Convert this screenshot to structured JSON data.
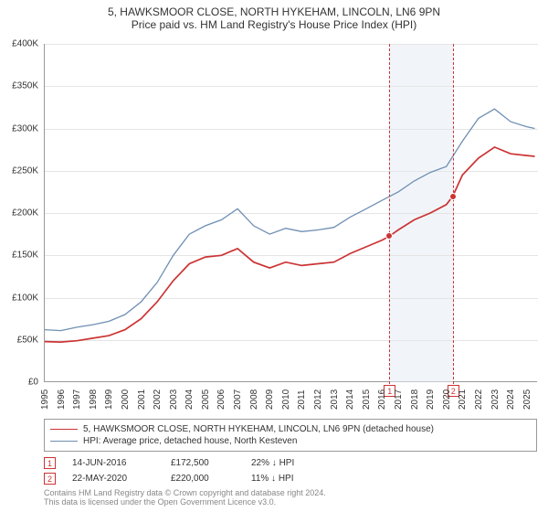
{
  "title": {
    "line1": "5, HAWKSMOOR CLOSE, NORTH HYKEHAM, LINCOLN, LN6 9PN",
    "line2": "Price paid vs. HM Land Registry's House Price Index (HPI)",
    "fontsize": 12,
    "color": "#333333"
  },
  "chart": {
    "type": "line",
    "background_color": "#ffffff",
    "grid_color": "#e5e5e5",
    "axis_color": "#999999",
    "ylim": [
      0,
      400000
    ],
    "ytick_step": 50000,
    "ytick_labels": [
      "£0",
      "£50K",
      "£100K",
      "£150K",
      "£200K",
      "£250K",
      "£300K",
      "£350K",
      "£400K"
    ],
    "ytick_fontsize": 10,
    "xlim": [
      1995,
      2025.7
    ],
    "xtick_years": [
      1995,
      1996,
      1997,
      1998,
      1999,
      2000,
      2001,
      2002,
      2003,
      2004,
      2005,
      2006,
      2007,
      2008,
      2009,
      2010,
      2011,
      2012,
      2013,
      2014,
      2015,
      2016,
      2017,
      2018,
      2019,
      2020,
      2021,
      2022,
      2023,
      2024,
      2025
    ],
    "xtick_fontsize": 10,
    "band": {
      "color": "#e6ecf5",
      "opacity": 0.55,
      "from_year": 2016.45,
      "to_year": 2020.4
    },
    "series": [
      {
        "name": "price_paid",
        "label": "5, HAWKSMOOR CLOSE, NORTH HYKEHAM, LINCOLN, LN6 9PN (detached house)",
        "color": "#cc3333",
        "line_width": 1.7,
        "data": [
          [
            1995,
            48000
          ],
          [
            1996,
            47500
          ],
          [
            1997,
            49000
          ],
          [
            1998,
            52000
          ],
          [
            1999,
            55000
          ],
          [
            2000,
            62000
          ],
          [
            2001,
            75000
          ],
          [
            2002,
            95000
          ],
          [
            2003,
            120000
          ],
          [
            2004,
            140000
          ],
          [
            2005,
            148000
          ],
          [
            2006,
            150000
          ],
          [
            2007,
            158000
          ],
          [
            2008,
            142000
          ],
          [
            2009,
            135000
          ],
          [
            2010,
            142000
          ],
          [
            2011,
            138000
          ],
          [
            2012,
            140000
          ],
          [
            2013,
            142000
          ],
          [
            2014,
            152000
          ],
          [
            2015,
            160000
          ],
          [
            2016,
            168000
          ],
          [
            2016.45,
            172500
          ],
          [
            2017,
            180000
          ],
          [
            2018,
            192000
          ],
          [
            2019,
            200000
          ],
          [
            2020,
            210000
          ],
          [
            2020.4,
            220000
          ],
          [
            2021,
            245000
          ],
          [
            2022,
            265000
          ],
          [
            2023,
            278000
          ],
          [
            2024,
            270000
          ],
          [
            2025,
            268000
          ],
          [
            2025.5,
            267000
          ]
        ]
      },
      {
        "name": "hpi",
        "label": "HPI: Average price, detached house, North Kesteven",
        "color": "#6f8fb3",
        "line_width": 1.3,
        "data": [
          [
            1995,
            62000
          ],
          [
            1996,
            61000
          ],
          [
            1997,
            65000
          ],
          [
            1998,
            68000
          ],
          [
            1999,
            72000
          ],
          [
            2000,
            80000
          ],
          [
            2001,
            95000
          ],
          [
            2002,
            118000
          ],
          [
            2003,
            150000
          ],
          [
            2004,
            175000
          ],
          [
            2005,
            185000
          ],
          [
            2006,
            192000
          ],
          [
            2007,
            205000
          ],
          [
            2008,
            185000
          ],
          [
            2009,
            175000
          ],
          [
            2010,
            182000
          ],
          [
            2011,
            178000
          ],
          [
            2012,
            180000
          ],
          [
            2013,
            183000
          ],
          [
            2014,
            195000
          ],
          [
            2015,
            205000
          ],
          [
            2016,
            215000
          ],
          [
            2017,
            225000
          ],
          [
            2018,
            238000
          ],
          [
            2019,
            248000
          ],
          [
            2020,
            255000
          ],
          [
            2021,
            285000
          ],
          [
            2022,
            312000
          ],
          [
            2023,
            323000
          ],
          [
            2024,
            308000
          ],
          [
            2025,
            302000
          ],
          [
            2025.5,
            300000
          ]
        ]
      }
    ],
    "markers": [
      {
        "id": "1",
        "year": 2016.45,
        "price": 172500,
        "dot_color": "#cc3333"
      },
      {
        "id": "2",
        "year": 2020.4,
        "price": 220000,
        "dot_color": "#cc3333"
      }
    ],
    "marker_style": {
      "line_color": "#cc3333",
      "box_border": "#cc3333",
      "box_bg": "#ffffff",
      "box_text_color": "#cc3333",
      "box_fontsize": 9,
      "dot_radius": 4
    }
  },
  "legend": {
    "border_color": "#999999",
    "fontsize": 10
  },
  "sales": [
    {
      "marker": "1",
      "date": "14-JUN-2016",
      "price": "£172,500",
      "diff": "22% ↓ HPI"
    },
    {
      "marker": "2",
      "date": "22-MAY-2020",
      "price": "£220,000",
      "diff": "11% ↓ HPI"
    }
  ],
  "attribution": {
    "line1": "Contains HM Land Registry data © Crown copyright and database right 2024.",
    "line2": "This data is licensed under the Open Government Licence v3.0.",
    "color": "#888888",
    "fontsize": 9
  }
}
